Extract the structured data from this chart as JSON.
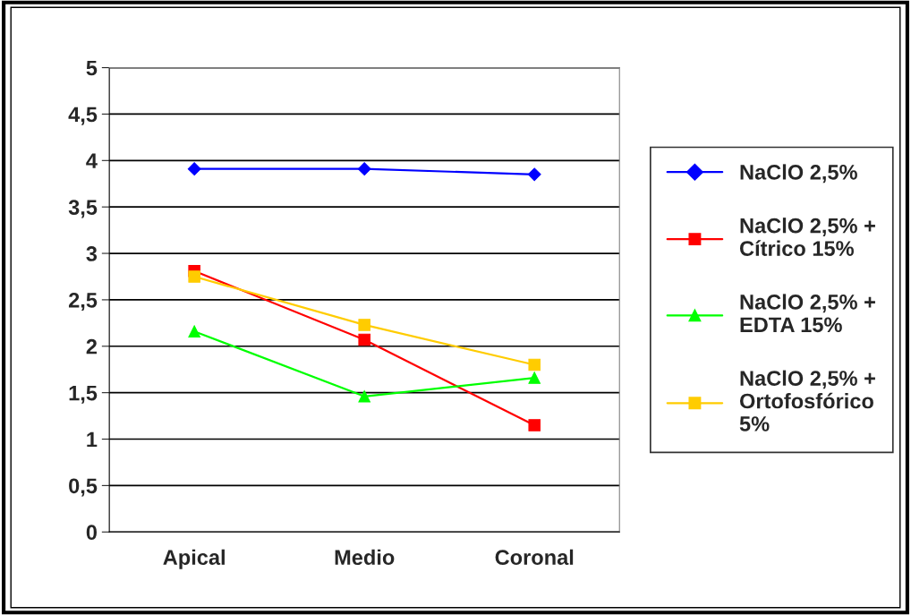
{
  "chart_data": {
    "type": "line",
    "categories": [
      "Apical",
      "Medio",
      "Coronal"
    ],
    "series": [
      {
        "name": "NaClO 2,5%",
        "color": "#0000ff",
        "marker": "diamond",
        "values": [
          3.91,
          3.91,
          3.85
        ]
      },
      {
        "name": "NaClO 2,5% +\nCítrico 15%",
        "color": "#ff0000",
        "marker": "square",
        "values": [
          2.81,
          2.07,
          1.15
        ]
      },
      {
        "name": "NaClO 2,5% +\nEDTA 15%",
        "color": "#00ff00",
        "marker": "triangle",
        "values": [
          2.16,
          1.46,
          1.66
        ]
      },
      {
        "name": "NaClO 2,5% +\nOrtofosfórico\n5%",
        "color": "#ffcc00",
        "marker": "square",
        "values": [
          2.75,
          2.23,
          1.8
        ]
      }
    ],
    "ylim": [
      0,
      5
    ],
    "yticks": [
      0,
      {
        "value": 0.5,
        "label": "0,5"
      },
      1,
      {
        "value": 1.5,
        "label": "1,5"
      },
      2,
      {
        "value": 2.5,
        "label": "2,5"
      },
      3,
      {
        "value": 3.5,
        "label": "3,5"
      },
      4,
      {
        "value": 4.5,
        "label": "4,5"
      },
      5
    ],
    "grid": "y",
    "legend": "right",
    "line_style": "solid"
  }
}
